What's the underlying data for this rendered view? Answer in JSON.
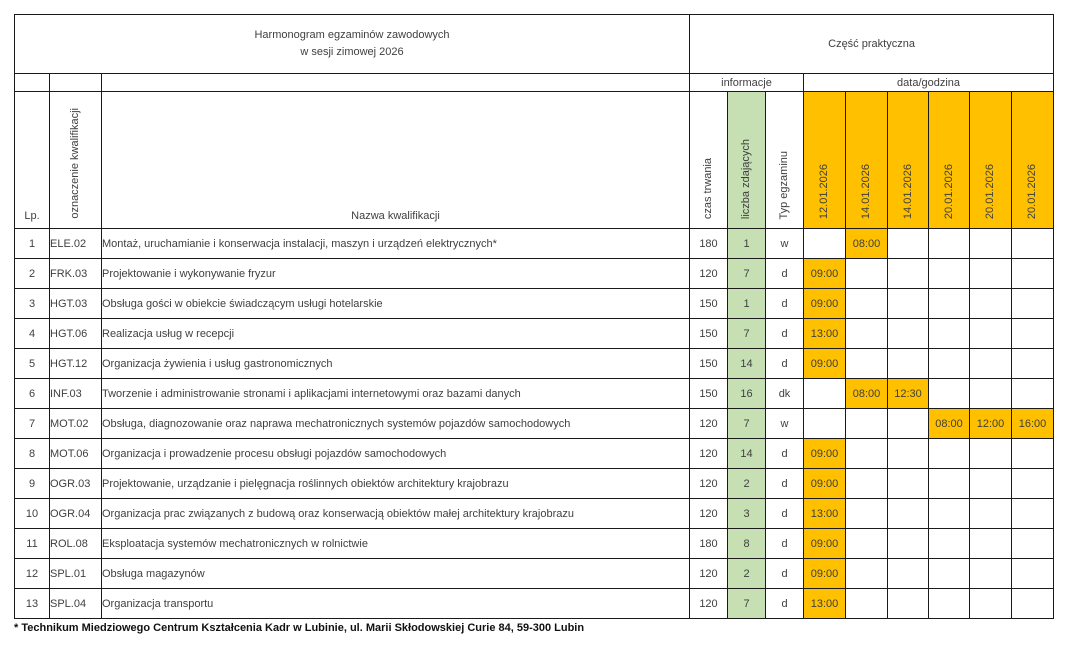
{
  "header": {
    "title_line1": "Harmonogram egzaminów zawodowych",
    "title_line2": "w sesji zimowej 2026",
    "practical": "Część praktyczna",
    "info_group": "informacje",
    "datetime_group": "data/godzina"
  },
  "columns": {
    "lp": "Lp.",
    "code": "oznaczenie kwalifikacji",
    "name": "Nazwa kwalifikacji",
    "duration": "czas trwania",
    "candidates": "liczba zdających",
    "exam_type": "Typ egzaminu",
    "dates": [
      "12.01.2026",
      "14.01.2026",
      "14.01.2026",
      "20.01.2026",
      "20.01.2026",
      "20.01.2026"
    ]
  },
  "rows": [
    {
      "lp": "1",
      "code": "ELE.02",
      "name": "Montaż, uruchamianie i konserwacja instalacji, maszyn i urządzeń elektrycznych*",
      "duration": "180",
      "candidates": "1",
      "type": "w",
      "times": [
        "",
        "08:00",
        "",
        "",
        "",
        ""
      ]
    },
    {
      "lp": "2",
      "code": "FRK.03",
      "name": "Projektowanie i wykonywanie fryzur",
      "duration": "120",
      "candidates": "7",
      "type": "d",
      "times": [
        "09:00",
        "",
        "",
        "",
        "",
        ""
      ]
    },
    {
      "lp": "3",
      "code": "HGT.03",
      "name": "Obsługa gości w obiekcie świadczącym usługi hotelarskie",
      "duration": "150",
      "candidates": "1",
      "type": "d",
      "times": [
        "09:00",
        "",
        "",
        "",
        "",
        ""
      ]
    },
    {
      "lp": "4",
      "code": "HGT.06",
      "name": "Realizacja usług w recepcji",
      "duration": "150",
      "candidates": "7",
      "type": "d",
      "times": [
        "13:00",
        "",
        "",
        "",
        "",
        ""
      ]
    },
    {
      "lp": "5",
      "code": "HGT.12",
      "name": "Organizacja żywienia i usług gastronomicznych",
      "duration": "150",
      "candidates": "14",
      "type": "d",
      "times": [
        "09:00",
        "",
        "",
        "",
        "",
        ""
      ]
    },
    {
      "lp": "6",
      "code": "INF.03",
      "name": "Tworzenie i administrowanie stronami i aplikacjami internetowymi oraz bazami danych",
      "duration": "150",
      "candidates": "16",
      "type": "dk",
      "times": [
        "",
        "08:00",
        "12:30",
        "",
        "",
        ""
      ]
    },
    {
      "lp": "7",
      "code": "MOT.02",
      "name": "Obsługa, diagnozowanie oraz naprawa mechatronicznych systemów pojazdów samochodowych",
      "duration": "120",
      "candidates": "7",
      "type": "w",
      "times": [
        "",
        "",
        "",
        "08:00",
        "12:00",
        "16:00"
      ]
    },
    {
      "lp": "8",
      "code": "MOT.06",
      "name": "Organizacja i prowadzenie procesu obsługi pojazdów samochodowych",
      "duration": "120",
      "candidates": "14",
      "type": "d",
      "times": [
        "09:00",
        "",
        "",
        "",
        "",
        ""
      ]
    },
    {
      "lp": "9",
      "code": "OGR.03",
      "name": "Projektowanie, urządzanie i pielęgnacja roślinnych obiektów architektury krajobrazu",
      "duration": "120",
      "candidates": "2",
      "type": "d",
      "times": [
        "09:00",
        "",
        "",
        "",
        "",
        ""
      ]
    },
    {
      "lp": "10",
      "code": "OGR.04",
      "name": "Organizacja prac związanych z budową oraz konserwacją obiektów małej architektury krajobrazu",
      "duration": "120",
      "candidates": "3",
      "type": "d",
      "times": [
        "13:00",
        "",
        "",
        "",
        "",
        ""
      ]
    },
    {
      "lp": "11",
      "code": "ROL.08",
      "name": "Eksploatacja systemów mechatronicznych w rolnictwie",
      "duration": "180",
      "candidates": "8",
      "type": "d",
      "times": [
        "09:00",
        "",
        "",
        "",
        "",
        ""
      ]
    },
    {
      "lp": "12",
      "code": "SPL.01",
      "name": "Obsługa magazynów",
      "duration": "120",
      "candidates": "2",
      "type": "d",
      "times": [
        "09:00",
        "",
        "",
        "",
        "",
        ""
      ]
    },
    {
      "lp": "13",
      "code": "SPL.04",
      "name": "Organizacja transportu",
      "duration": "120",
      "candidates": "7",
      "type": "d",
      "times": [
        "13:00",
        "",
        "",
        "",
        "",
        ""
      ]
    }
  ],
  "footnote": "* Technikum Miedziowego Centrum Kształcenia Kadr w Lubinie, ul. Marii Skłodowskiej Curie 84, 59-300 Lubin",
  "colors": {
    "green": "#c6e0b4",
    "orange": "#ffc000"
  }
}
